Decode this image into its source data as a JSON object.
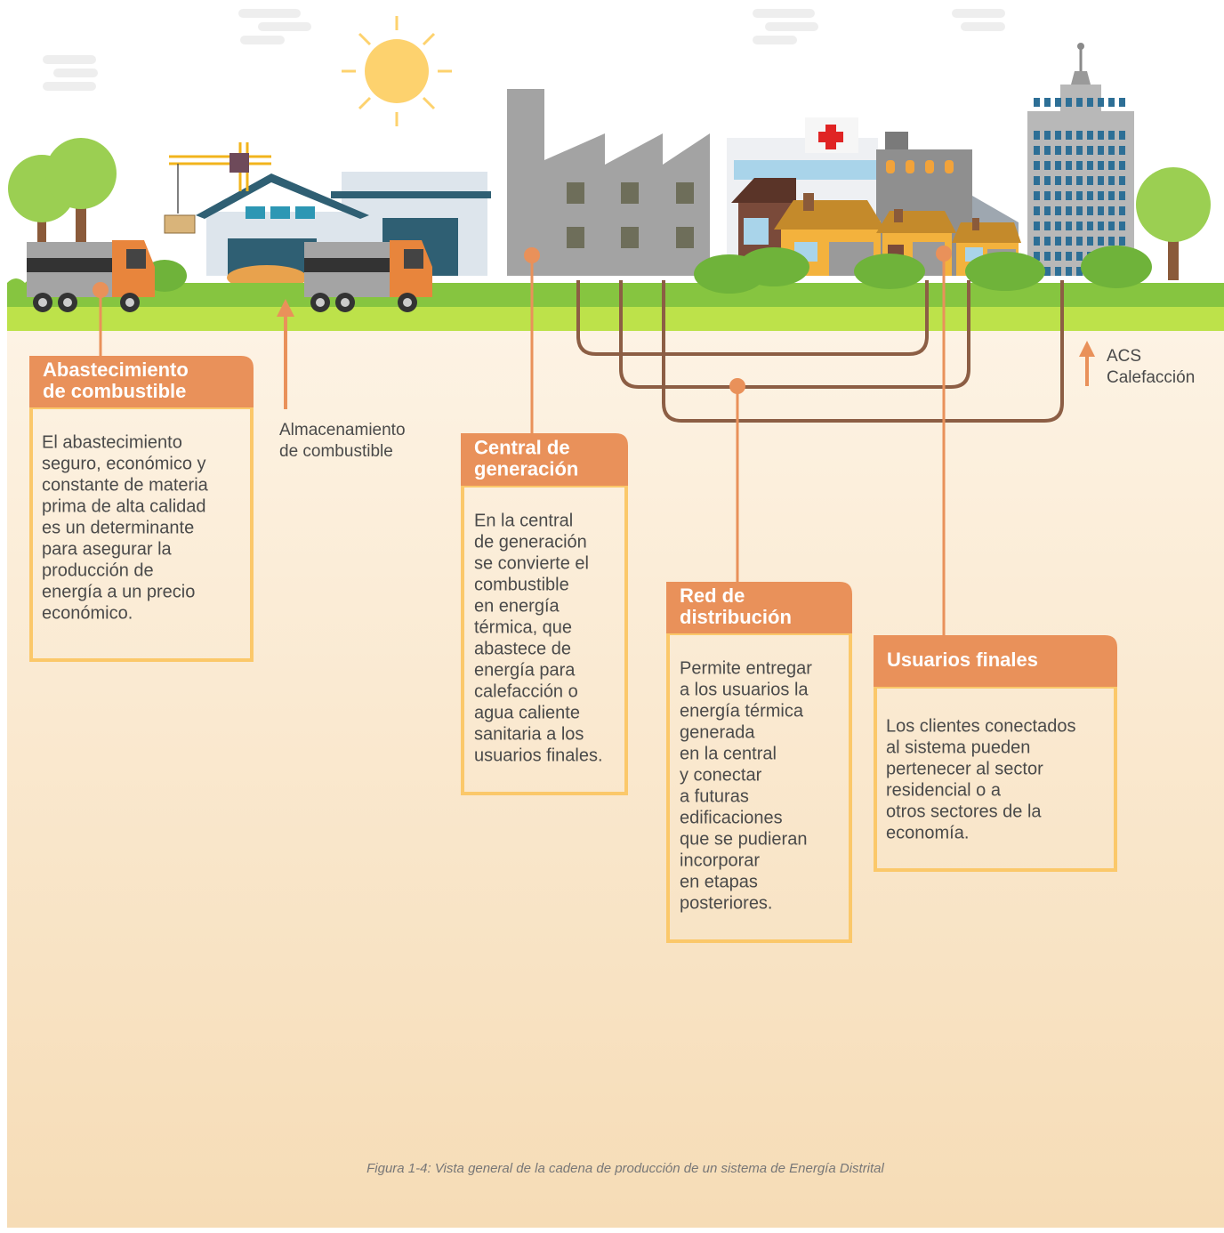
{
  "sections": [
    {
      "title": [
        "Abastecimiento",
        "de combustible"
      ],
      "body": [
        "El abastecimiento",
        "seguro, económico y",
        "constante de materia",
        "prima de alta calidad",
        "es un determinante",
        "para asegurar la",
        "producción de",
        "energía a un precio",
        "económico."
      ]
    },
    {
      "title": [
        "Central de",
        "generación"
      ],
      "body": [
        "En la central",
        "de generación",
        "se convierte el",
        "combustible",
        "en energía",
        "térmica, que",
        "abastece de",
        "energía para",
        "calefacción o",
        "agua caliente",
        "sanitaria a los",
        "usuarios finales."
      ]
    },
    {
      "title": [
        "Red de",
        "distribución"
      ],
      "body": [
        "Permite entregar",
        "a los usuarios la",
        "energía térmica",
        "generada",
        "en la central",
        "y conectar",
        "a futuras",
        "edificaciones",
        "que se pudieran",
        "incorporar",
        "en etapas",
        "posteriores."
      ]
    },
    {
      "title": [
        "Usuarios finales"
      ],
      "body": [
        "Los clientes conectados",
        "al sistema pueden",
        "pertenecer al sector",
        "residencial o a",
        "otros sectores de la",
        "economía."
      ]
    }
  ],
  "storage_label": [
    "Almacenamiento",
    "de combustible"
  ],
  "flow_labels": [
    "ACS",
    "Calefacción"
  ],
  "caption": "Figura 1-4: Vista general de la cadena de producción de un sistema de Energía Distrital"
}
